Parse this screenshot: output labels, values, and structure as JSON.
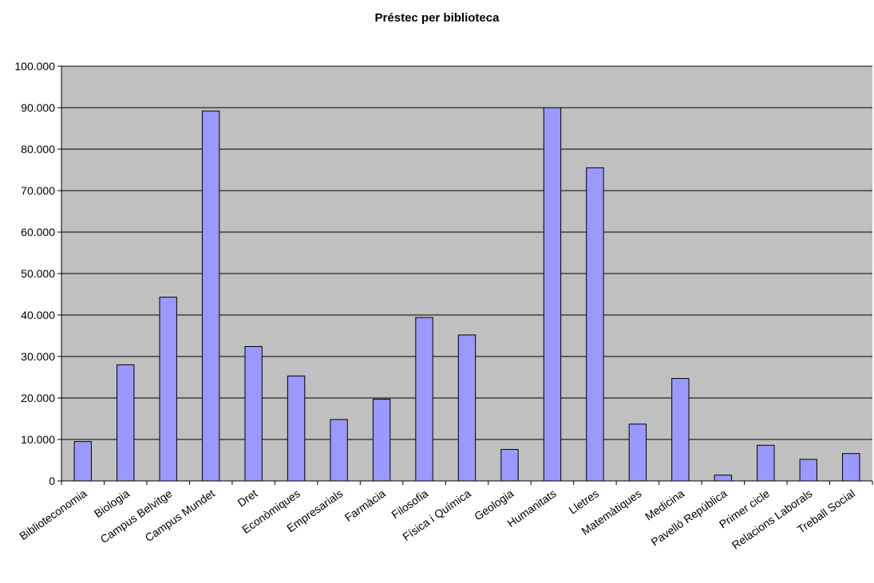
{
  "chart_data": {
    "type": "bar",
    "title": "Préstec per biblioteca",
    "xlabel": "",
    "ylabel": "",
    "ylim": [
      0,
      100000
    ],
    "y_ticks": [
      "0",
      "10.000",
      "20.000",
      "30.000",
      "40.000",
      "50.000",
      "60.000",
      "70.000",
      "80.000",
      "90.000",
      "100.000"
    ],
    "grid": true,
    "bar_color": "#9999ff",
    "plot_background": "#c0c0c0",
    "categories": [
      "Biblioteconomia",
      "Biologia",
      "Campus Belvitge",
      "Campus Mundet",
      "Dret",
      "Econòmiques",
      "Empresarials",
      "Farmàcia",
      "Filosofia",
      "Física i Química",
      "Geologia",
      "Humanitats",
      "Lletres",
      "Matemàtiques",
      "Medicina",
      "Pavelló República",
      "Primer cicle",
      "Relacions Laborals",
      "Treball Social"
    ],
    "values": [
      9500,
      28000,
      44300,
      89200,
      32400,
      25300,
      14800,
      19700,
      39400,
      35200,
      7600,
      90000,
      75500,
      13700,
      24700,
      1400,
      8600,
      5200,
      6600
    ]
  }
}
